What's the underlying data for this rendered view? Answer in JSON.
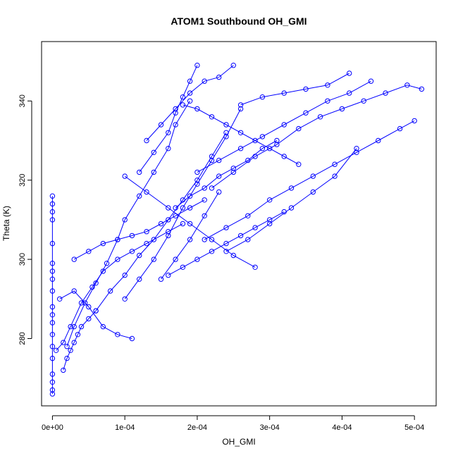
{
  "chart_data": {
    "type": "line",
    "title": "ATOM1 Southbound OH_GMI",
    "xlabel": "OH_GMI",
    "ylabel": "Theta (K)",
    "xlim": [
      -1.5e-05,
      0.00053
    ],
    "ylim": [
      263,
      355
    ],
    "x_ticks": [
      0,
      0.0001,
      0.0002,
      0.0003,
      0.0004,
      0.0005
    ],
    "x_tick_labels": [
      "0e+00",
      "1e-04",
      "2e-04",
      "3e-04",
      "4e-04",
      "5e-04"
    ],
    "y_ticks": [
      280,
      300,
      320,
      340
    ],
    "y_tick_labels": [
      "280",
      "300",
      "320",
      "340"
    ],
    "grid": false,
    "legend": "none",
    "marker": "open-circle",
    "color": "#0000ff",
    "series": [
      {
        "x": [
          0,
          0,
          0,
          0,
          0,
          0,
          0,
          0,
          0,
          0,
          0,
          0,
          0,
          0,
          0,
          0,
          0,
          0,
          0
        ],
        "y": [
          266,
          267,
          269,
          271,
          275,
          278,
          281,
          284,
          286,
          288,
          292,
          295,
          297,
          299,
          304,
          310,
          312,
          314,
          316
        ]
      },
      {
        "x": [
          5e-06,
          1.5e-05,
          2.5e-05,
          4e-05,
          5.5e-05,
          7e-05,
          9e-05,
          0.00011,
          0.00013,
          0.00016,
          0.00018
        ],
        "y": [
          277,
          279,
          283,
          289,
          293,
          297,
          300,
          302,
          304,
          307,
          309
        ]
      },
      {
        "x": [
          1.5e-05,
          2e-05,
          2.5e-05,
          3e-05,
          3.5e-05,
          4e-05,
          5e-05,
          6e-05
        ],
        "y": [
          272,
          275,
          277,
          279,
          281,
          283,
          285,
          287
        ]
      },
      {
        "x": [
          2e-05,
          3e-05,
          4.5e-05,
          6e-05,
          7.5e-05,
          9e-05,
          0.0001,
          0.00012,
          0.00014,
          0.00016,
          0.00017,
          0.00019
        ],
        "y": [
          278,
          283,
          289,
          294,
          299,
          305,
          310,
          316,
          322,
          328,
          334,
          340
        ]
      },
      {
        "x": [
          1e-05,
          3e-05,
          5e-05,
          7e-05,
          9e-05,
          0.00011
        ],
        "y": [
          290,
          292,
          288,
          283,
          281,
          280
        ]
      },
      {
        "x": [
          3e-05,
          5e-05,
          7e-05,
          9e-05,
          0.00011,
          0.00013,
          0.00015,
          0.00017,
          0.00019,
          0.00021
        ],
        "y": [
          300,
          302,
          304,
          305,
          306,
          307,
          309,
          311,
          313,
          315
        ]
      },
      {
        "x": [
          6e-05,
          8e-05,
          0.0001,
          0.00012,
          0.00014,
          0.00016,
          0.00018,
          0.0002,
          0.00022,
          0.00024
        ],
        "y": [
          287,
          292,
          296,
          301,
          305,
          310,
          315,
          320,
          326,
          332
        ]
      },
      {
        "x": [
          0.0001,
          0.00012,
          0.00014,
          0.00016,
          0.00018,
          0.0002,
          0.00022,
          0.00024,
          0.00026
        ],
        "y": [
          290,
          295,
          300,
          306,
          313,
          319,
          325,
          331,
          338
        ]
      },
      {
        "x": [
          0.00012,
          0.00014,
          0.00016,
          0.00017,
          0.00018,
          0.00019,
          0.0002
        ],
        "y": [
          322,
          327,
          332,
          337,
          341,
          345,
          349
        ]
      },
      {
        "x": [
          0.00013,
          0.00015,
          0.00017,
          0.00019,
          0.00021,
          0.00023,
          0.00025
        ],
        "y": [
          330,
          334,
          338,
          342,
          345,
          346,
          349
        ]
      },
      {
        "x": [
          0.00016,
          0.00018,
          0.0002,
          0.00022,
          0.00024,
          0.00026,
          0.00028,
          0.0003,
          0.00032
        ],
        "y": [
          296,
          298,
          300,
          302,
          304,
          306,
          308,
          310,
          312
        ]
      },
      {
        "x": [
          0.00017,
          0.00019,
          0.00021,
          0.00023,
          0.00025,
          0.00027,
          0.00029,
          0.00031
        ],
        "y": [
          313,
          316,
          318,
          321,
          323,
          325,
          328,
          330
        ]
      },
      {
        "x": [
          0.00018,
          0.0002,
          0.00022,
          0.00024,
          0.00026,
          0.00028,
          0.0003,
          0.00032,
          0.00034
        ],
        "y": [
          339,
          338,
          336,
          334,
          332,
          330,
          328,
          326,
          324
        ]
      },
      {
        "x": [
          0.0002,
          0.00023,
          0.00026,
          0.00029,
          0.00032,
          0.00035,
          0.00038,
          0.00041,
          0.00044
        ],
        "y": [
          322,
          325,
          328,
          331,
          334,
          337,
          340,
          342,
          345
        ]
      },
      {
        "x": [
          0.00021,
          0.00024,
          0.00027,
          0.0003,
          0.00033,
          0.00036,
          0.00039,
          0.00042,
          0.00045,
          0.00048,
          0.0005
        ],
        "y": [
          305,
          308,
          311,
          315,
          318,
          321,
          324,
          327,
          330,
          333,
          335
        ]
      },
      {
        "x": [
          0.00022,
          0.00025,
          0.00028,
          0.00031,
          0.00034,
          0.00037,
          0.0004,
          0.00043,
          0.00046,
          0.00049,
          0.00051
        ],
        "y": [
          318,
          322,
          326,
          329,
          333,
          336,
          338,
          340,
          342,
          344,
          343
        ]
      },
      {
        "x": [
          0.00024,
          0.00027,
          0.0003,
          0.00033,
          0.00036,
          0.00039,
          0.00042
        ],
        "y": [
          302,
          305,
          309,
          313,
          317,
          321,
          328
        ]
      },
      {
        "x": [
          0.00026,
          0.00029,
          0.00032,
          0.00035,
          0.00038,
          0.00041
        ],
        "y": [
          339,
          341,
          342,
          343,
          344,
          347
        ]
      },
      {
        "x": [
          0.0001,
          0.00013,
          0.00016,
          0.00019,
          0.00022,
          0.00025,
          0.00028
        ],
        "y": [
          321,
          317,
          313,
          309,
          305,
          301,
          298
        ]
      },
      {
        "x": [
          0.00015,
          0.00017,
          0.00019,
          0.00021,
          0.00023
        ],
        "y": [
          295,
          300,
          305,
          311,
          317
        ]
      }
    ]
  }
}
